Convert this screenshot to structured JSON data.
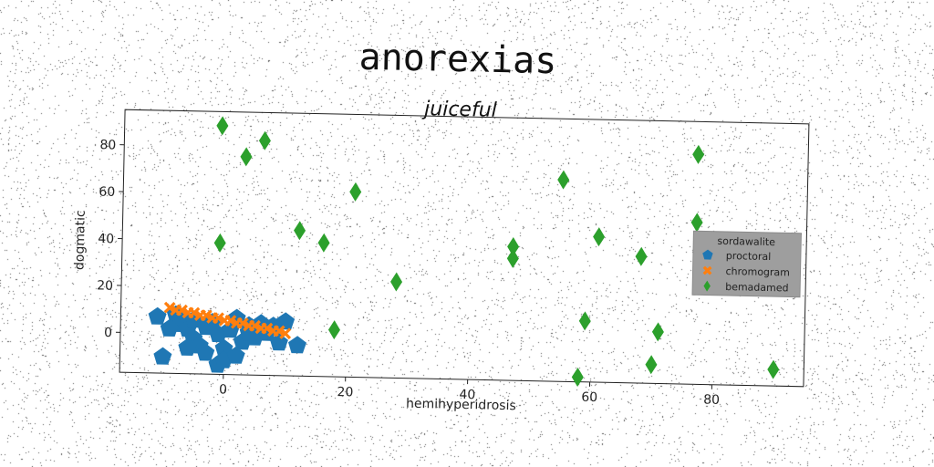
{
  "chart_data": {
    "type": "scatter",
    "title": "anorexias",
    "subtitle": "juiceful",
    "xlabel": "hemihyperidrosis",
    "ylabel": "dogmatic",
    "xlim": [
      -17,
      95
    ],
    "ylim": [
      -17,
      95
    ],
    "xticks": [
      0,
      20,
      40,
      60,
      80
    ],
    "yticks": [
      0,
      20,
      40,
      60,
      80
    ],
    "grid": false,
    "legend": {
      "title": "sordawalite",
      "position": "right"
    },
    "series": [
      {
        "name": "proctoral",
        "marker": "pentagon",
        "color": "#1f77b4",
        "points": [
          [
            -11,
            7
          ],
          [
            -10,
            -10
          ],
          [
            -8,
            8
          ],
          [
            -7,
            4
          ],
          [
            -6,
            2
          ],
          [
            -5,
            -2
          ],
          [
            -5,
            6
          ],
          [
            -4,
            -5
          ],
          [
            -3,
            3
          ],
          [
            -3,
            -8
          ],
          [
            -2,
            5
          ],
          [
            -1,
            0
          ],
          [
            0,
            -6
          ],
          [
            -1,
            -13
          ],
          [
            0,
            -11
          ],
          [
            1,
            2
          ],
          [
            2,
            7
          ],
          [
            3,
            -3
          ],
          [
            4,
            4
          ],
          [
            5,
            -1
          ],
          [
            6,
            5
          ],
          [
            7,
            1
          ],
          [
            8,
            4
          ],
          [
            9,
            -3
          ],
          [
            10,
            6
          ],
          [
            12,
            -4
          ],
          [
            -9,
            2
          ],
          [
            -6,
            -6
          ],
          [
            2,
            -9
          ],
          [
            4,
            1
          ]
        ]
      },
      {
        "name": "chromogram",
        "marker": "x",
        "color": "#ff7f0e",
        "points": [
          [
            -9,
            11
          ],
          [
            -8,
            10
          ],
          [
            -7,
            10
          ],
          [
            -6,
            9
          ],
          [
            -5,
            9
          ],
          [
            -4,
            8
          ],
          [
            -3,
            8
          ],
          [
            -2,
            7
          ],
          [
            -1,
            7
          ],
          [
            0,
            6
          ],
          [
            1,
            6
          ],
          [
            2,
            5
          ],
          [
            3,
            5
          ],
          [
            4,
            4
          ],
          [
            5,
            4
          ],
          [
            6,
            3
          ],
          [
            7,
            3
          ],
          [
            8,
            2
          ],
          [
            9,
            2
          ],
          [
            10,
            1
          ]
        ]
      },
      {
        "name": "bemadamed",
        "marker": "thin_diamond",
        "color": "#2ca02c",
        "points": [
          [
            -1,
            89
          ],
          [
            3,
            76
          ],
          [
            6,
            83
          ],
          [
            -1,
            39
          ],
          [
            12,
            45
          ],
          [
            16,
            40
          ],
          [
            21,
            62
          ],
          [
            28,
            24
          ],
          [
            18,
            3
          ],
          [
            47,
            40
          ],
          [
            47,
            35
          ],
          [
            55,
            69
          ],
          [
            61,
            45
          ],
          [
            59,
            9
          ],
          [
            58,
            -15
          ],
          [
            68,
            37
          ],
          [
            71,
            5
          ],
          [
            70,
            -9
          ],
          [
            77,
            81
          ],
          [
            77,
            52
          ],
          [
            90,
            -10
          ]
        ]
      }
    ]
  }
}
